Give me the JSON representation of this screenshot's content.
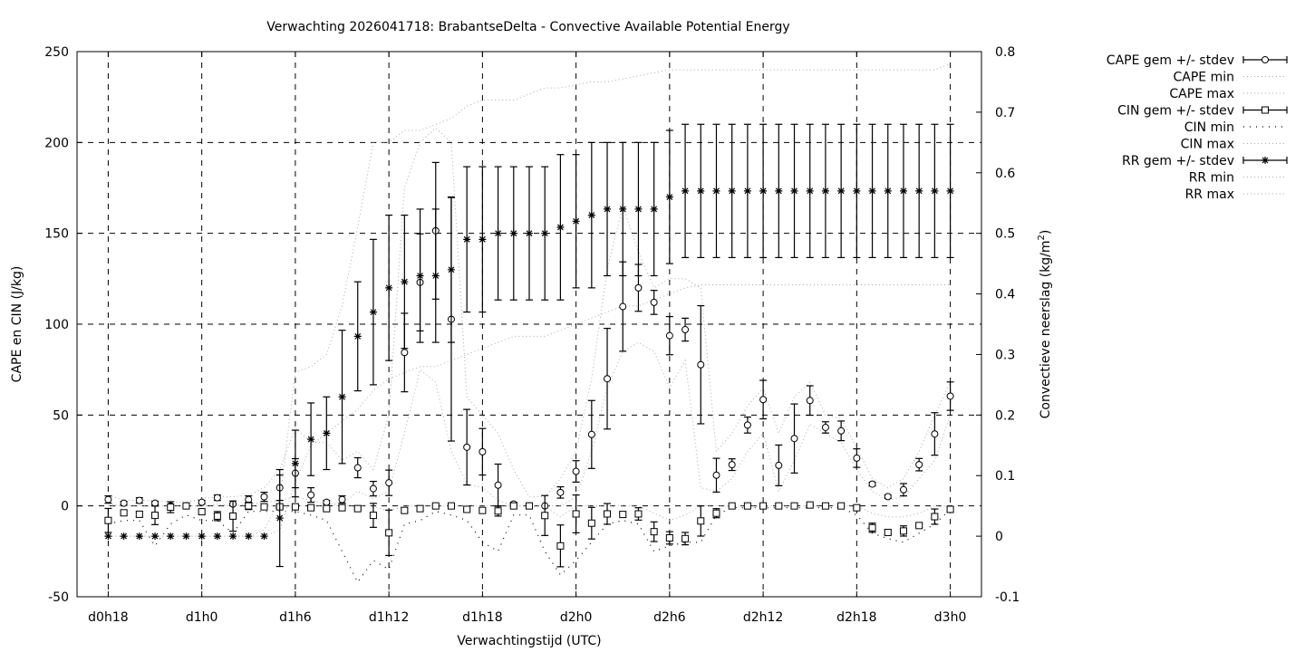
{
  "chart_data": {
    "type": "line",
    "title": "Verwachting 2026041718: BrabantseDelta - Convective Available Potential Energy",
    "xlabel": "Verwachtingstijd (UTC)",
    "ylabel": "CAPE en CIN (J/kg)",
    "y2label": "Convectieve neerslag (kg/m",
    "y2label_sup": "2",
    "y2label_end": ")",
    "xlim": [
      16,
      74
    ],
    "ylim": [
      -50,
      250
    ],
    "y2lim": [
      -0.1,
      0.8
    ],
    "grid": true,
    "legend": "outside-top-right",
    "x_ticks": [
      18,
      24,
      30,
      36,
      42,
      48,
      54,
      60,
      66,
      72
    ],
    "x_tick_labels": [
      "d0h18",
      "d1h0",
      "d1h6",
      "d1h12",
      "d1h18",
      "d2h0",
      "d2h6",
      "d2h12",
      "d2h18",
      "d3h0"
    ],
    "y_ticks": [
      -50,
      0,
      50,
      100,
      150,
      200,
      250
    ],
    "y_tick_labels": [
      "-50",
      "0",
      "50",
      "100",
      "150",
      "200",
      "250"
    ],
    "y2_ticks": [
      -0.1,
      0,
      0.1,
      0.2,
      0.3,
      0.4,
      0.5,
      0.6,
      0.7,
      0.8
    ],
    "y2_tick_labels": [
      "-0.1",
      "0",
      "0.1",
      "0.2",
      "0.3",
      "0.4",
      "0.5",
      "0.6",
      "0.7",
      "0.8"
    ],
    "x_start_hour": 18,
    "series": [
      {
        "name": "CAPE gem +/- stdev",
        "kind": "errorbar",
        "marker": "circle",
        "axis": "y",
        "values": [
          3.5,
          1.5,
          3,
          1.5,
          0,
          0,
          2,
          4.5,
          1,
          3.5,
          5,
          10,
          18,
          6,
          2,
          3.5,
          21,
          9.5,
          12.7,
          84.4,
          123,
          151.4,
          102.7,
          32.3,
          29.8,
          11.4,
          1,
          0,
          0,
          7.4,
          19,
          39.3,
          70,
          109.7,
          120,
          112,
          93.7,
          97,
          77.7,
          16.9,
          22.7,
          44.5,
          58.5,
          22.3,
          37.1,
          58,
          43.2,
          41.3,
          26.3,
          12,
          5.1,
          8.9,
          22.7,
          39.6,
          60.4
        ],
        "stdev": [
          2,
          1,
          1.5,
          1,
          0,
          0,
          1,
          1.5,
          0.5,
          2,
          2.5,
          7,
          8,
          4,
          1,
          2,
          5.5,
          4,
          7,
          21.6,
          26.7,
          37.6,
          67,
          20.8,
          12.8,
          11.6,
          1,
          0,
          0,
          3.1,
          5.9,
          18.7,
          27.7,
          24.6,
          12.9,
          6.6,
          10.5,
          6.3,
          32.5,
          9.3,
          3.2,
          4.4,
          10.6,
          11.2,
          19,
          8.1,
          3.1,
          5.4,
          5.1,
          1,
          1,
          3.4,
          3.4,
          11.7,
          7.8
        ]
      },
      {
        "name": "CAPE min",
        "kind": "line",
        "style": "gray",
        "axis": "y",
        "values": [
          1,
          0,
          0,
          0,
          0,
          0,
          0,
          1,
          0,
          1,
          2,
          3,
          5,
          3,
          1,
          1,
          8,
          4,
          8,
          40,
          75,
          68,
          30,
          12,
          10,
          3,
          0,
          0,
          0,
          0,
          5,
          30,
          65,
          85,
          90,
          85,
          65,
          80,
          10,
          8,
          15,
          30,
          40,
          8,
          25,
          45,
          40,
          35,
          20,
          8,
          3,
          5,
          15,
          25,
          50
        ]
      },
      {
        "name": "CAPE max",
        "kind": "line",
        "style": "gray",
        "axis": "y",
        "values": [
          6,
          3,
          3,
          3,
          2,
          2,
          4,
          5,
          5,
          6,
          10,
          20,
          43,
          35,
          35,
          25,
          30,
          20,
          50,
          175,
          200,
          208,
          200,
          60,
          50,
          40,
          20,
          5,
          5,
          15,
          30,
          70,
          130,
          165,
          140,
          120,
          125,
          125,
          120,
          30,
          40,
          55,
          65,
          40,
          60,
          68,
          50,
          48,
          32,
          15,
          10,
          15,
          30,
          50,
          68
        ]
      },
      {
        "name": "CIN gem +/- stdev",
        "kind": "errorbar",
        "marker": "square",
        "axis": "y",
        "values": [
          -8,
          -3.8,
          -4.6,
          -5.2,
          -0.7,
          0,
          -3.2,
          -5.6,
          -5.6,
          0,
          -0.5,
          -0.5,
          -0.5,
          -1,
          -1.5,
          -1,
          -1.5,
          -5.2,
          -14.8,
          -2.5,
          -1.5,
          0,
          0,
          -1.9,
          -2.5,
          -2.8,
          0,
          0,
          -5.3,
          -22,
          -4.4,
          -9.5,
          -4.4,
          -4.7,
          -4.4,
          -14.2,
          -17.6,
          -18,
          -8.3,
          -4,
          0,
          0,
          0,
          0,
          0,
          0.5,
          0,
          0,
          -1,
          -12,
          -14.6,
          -13.8,
          -10.8,
          -5.9,
          -1.9
        ],
        "stdev": [
          6.6,
          1,
          1.5,
          5.1,
          3,
          0,
          1,
          2.5,
          8.3,
          2,
          0.5,
          0.5,
          0.5,
          0.5,
          0.5,
          0.5,
          0.5,
          6.6,
          12.5,
          1,
          1.5,
          0.5,
          0.5,
          0.5,
          0.5,
          2.8,
          1.5,
          0.5,
          11,
          11.5,
          10.4,
          8.7,
          5.7,
          1,
          3.4,
          5.4,
          3.4,
          3.4,
          8.3,
          2.5,
          0.3,
          0.3,
          0.3,
          0.3,
          0.3,
          0.5,
          0.3,
          0.3,
          0.5,
          2.5,
          1,
          2.8,
          1,
          4.2,
          1.5
        ]
      },
      {
        "name": "CIN min",
        "kind": "line",
        "style": "black",
        "axis": "y",
        "values": [
          -10,
          -8,
          -8,
          -22,
          -10,
          -5,
          -8,
          -8,
          -15,
          -3,
          -3,
          -3,
          -3,
          -5,
          -8,
          -25,
          -42,
          -30,
          -35,
          -10,
          -8,
          -3,
          -5,
          -8,
          -20,
          -25,
          -5,
          -5,
          -25,
          -38,
          -30,
          -20,
          -10,
          -8,
          -10,
          -25,
          -22,
          -20,
          -20,
          -5,
          -1,
          -1,
          -1,
          -1,
          -1,
          -1,
          -1,
          -1,
          -5,
          -15,
          -18,
          -20,
          -15,
          -10,
          -2
        ]
      },
      {
        "name": "CIN max",
        "kind": "line",
        "style": "gray",
        "axis": "y",
        "values": [
          0,
          0,
          0,
          0,
          0,
          0,
          0,
          0,
          0,
          0,
          0,
          0,
          0,
          0,
          0,
          0,
          0,
          0,
          -3,
          0,
          0,
          0,
          0,
          0,
          0,
          0,
          0,
          0,
          0,
          -6,
          0,
          0,
          0,
          0,
          0,
          -4,
          -8,
          -5,
          0,
          0,
          0,
          0,
          0,
          0,
          0,
          0,
          0,
          0,
          0,
          -4,
          -6,
          -6,
          -4,
          0,
          0
        ]
      },
      {
        "name": "RR gem +/- stdev",
        "kind": "errorbar",
        "marker": "star",
        "axis": "y2",
        "values": [
          0,
          0,
          0,
          0,
          0,
          0,
          0,
          0,
          0,
          0,
          0,
          0.03,
          0.12,
          0.16,
          0.17,
          0.23,
          0.33,
          0.37,
          0.41,
          0.42,
          0.43,
          0.43,
          0.44,
          0.49,
          0.49,
          0.5,
          0.5,
          0.5,
          0.5,
          0.51,
          0.52,
          0.53,
          0.54,
          0.54,
          0.54,
          0.54,
          0.56,
          0.57,
          0.57,
          0.57,
          0.57,
          0.57,
          0.57,
          0.57,
          0.57,
          0.57,
          0.57,
          0.57,
          0.57,
          0.57,
          0.57,
          0.57,
          0.57,
          0.57,
          0.57
        ],
        "stdev": [
          0,
          0,
          0,
          0,
          0,
          0,
          0,
          0,
          0,
          0,
          0,
          0.08,
          0.055,
          0.06,
          0.06,
          0.11,
          0.09,
          0.12,
          0.12,
          0.11,
          0.11,
          0.11,
          0.12,
          0.12,
          0.12,
          0.11,
          0.11,
          0.11,
          0.11,
          0.12,
          0.11,
          0.12,
          0.11,
          0.11,
          0.11,
          0.11,
          0.11,
          0.11,
          0.11,
          0.11,
          0.11,
          0.11,
          0.11,
          0.11,
          0.11,
          0.11,
          0.11,
          0.11,
          0.11,
          0.11,
          0.11,
          0.11,
          0.11,
          0.11,
          0.11
        ]
      },
      {
        "name": "RR min",
        "kind": "line",
        "style": "gray",
        "axis": "y2",
        "values": [
          0,
          0,
          0,
          0,
          0,
          0,
          0,
          0,
          0,
          0,
          0,
          0.01,
          0.09,
          0.15,
          0.17,
          0.19,
          0.21,
          0.24,
          0.26,
          0.27,
          0.28,
          0.28,
          0.29,
          0.3,
          0.31,
          0.32,
          0.33,
          0.33,
          0.33,
          0.34,
          0.35,
          0.36,
          0.37,
          0.38,
          0.38,
          0.39,
          0.4,
          0.41,
          0.415,
          0.415,
          0.415,
          0.415,
          0.415,
          0.415,
          0.415,
          0.415,
          0.415,
          0.415,
          0.415,
          0.415,
          0.415,
          0.415,
          0.415,
          0.415,
          0.415
        ]
      },
      {
        "name": "RR max",
        "kind": "line",
        "style": "gray",
        "axis": "y2",
        "values": [
          0,
          0,
          0,
          0,
          0,
          0,
          0,
          0,
          0,
          0,
          0.01,
          0.06,
          0.27,
          0.28,
          0.3,
          0.38,
          0.51,
          0.65,
          0.65,
          0.67,
          0.67,
          0.68,
          0.69,
          0.71,
          0.72,
          0.72,
          0.72,
          0.73,
          0.74,
          0.74,
          0.745,
          0.75,
          0.75,
          0.755,
          0.76,
          0.765,
          0.77,
          0.77,
          0.77,
          0.77,
          0.77,
          0.77,
          0.77,
          0.77,
          0.77,
          0.77,
          0.77,
          0.77,
          0.77,
          0.77,
          0.77,
          0.77,
          0.77,
          0.77,
          0.78
        ]
      }
    ]
  }
}
